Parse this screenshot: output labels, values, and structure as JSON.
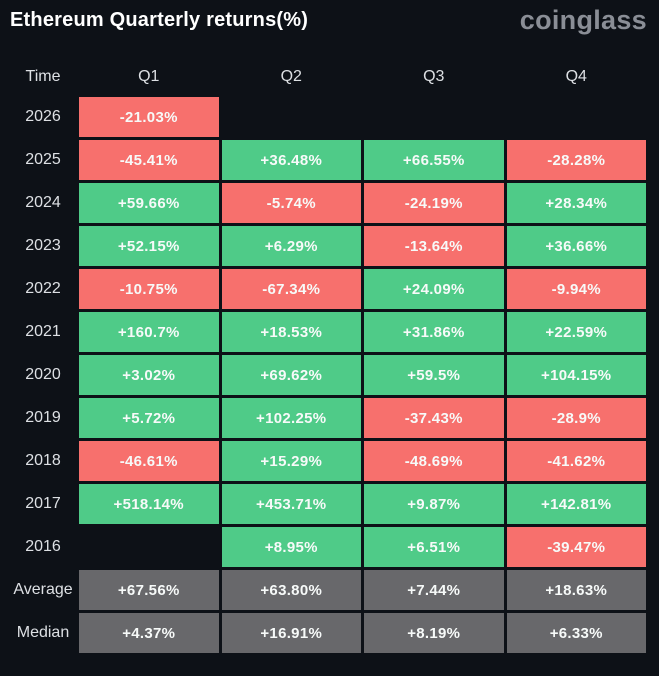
{
  "header": {
    "title": "Ethereum Quarterly returns(%)",
    "logo": "coinglass"
  },
  "colors": {
    "background": "#0D1117",
    "positive": "#4FCB88",
    "negative": "#F7706D",
    "neutral": "#68686B",
    "header_text": "#DDE0E4",
    "cell_text": "#F7FAF9",
    "logo_text": "#8A8E96"
  },
  "chart_data": {
    "type": "table",
    "title": "Ethereum Quarterly returns(%)",
    "columns": [
      "Time",
      "Q1",
      "Q2",
      "Q3",
      "Q4"
    ],
    "rows": [
      {
        "label": "2026",
        "style": "signed",
        "values": [
          "-21.03%",
          null,
          null,
          null
        ]
      },
      {
        "label": "2025",
        "style": "signed",
        "values": [
          "-45.41%",
          "+36.48%",
          "+66.55%",
          "-28.28%"
        ]
      },
      {
        "label": "2024",
        "style": "signed",
        "values": [
          "+59.66%",
          "-5.74%",
          "-24.19%",
          "+28.34%"
        ]
      },
      {
        "label": "2023",
        "style": "signed",
        "values": [
          "+52.15%",
          "+6.29%",
          "-13.64%",
          "+36.66%"
        ]
      },
      {
        "label": "2022",
        "style": "signed",
        "values": [
          "-10.75%",
          "-67.34%",
          "+24.09%",
          "-9.94%"
        ]
      },
      {
        "label": "2021",
        "style": "signed",
        "values": [
          "+160.7%",
          "+18.53%",
          "+31.86%",
          "+22.59%"
        ]
      },
      {
        "label": "2020",
        "style": "signed",
        "values": [
          "+3.02%",
          "+69.62%",
          "+59.5%",
          "+104.15%"
        ]
      },
      {
        "label": "2019",
        "style": "signed",
        "values": [
          "+5.72%",
          "+102.25%",
          "-37.43%",
          "-28.9%"
        ]
      },
      {
        "label": "2018",
        "style": "signed",
        "values": [
          "-46.61%",
          "+15.29%",
          "-48.69%",
          "-41.62%"
        ]
      },
      {
        "label": "2017",
        "style": "signed",
        "values": [
          "+518.14%",
          "+453.71%",
          "+9.87%",
          "+142.81%"
        ]
      },
      {
        "label": "2016",
        "style": "signed",
        "values": [
          null,
          "+8.95%",
          "+6.51%",
          "-39.47%"
        ]
      },
      {
        "label": "Average",
        "style": "neutral",
        "values": [
          "+67.56%",
          "+63.80%",
          "+7.44%",
          "+18.63%"
        ]
      },
      {
        "label": "Median",
        "style": "neutral",
        "values": [
          "+4.37%",
          "+16.91%",
          "+8.19%",
          "+6.33%"
        ]
      }
    ],
    "legend_position": "none",
    "value_coloring": "green = positive return, red = negative return, gray = summary rows (Average/Median)"
  }
}
